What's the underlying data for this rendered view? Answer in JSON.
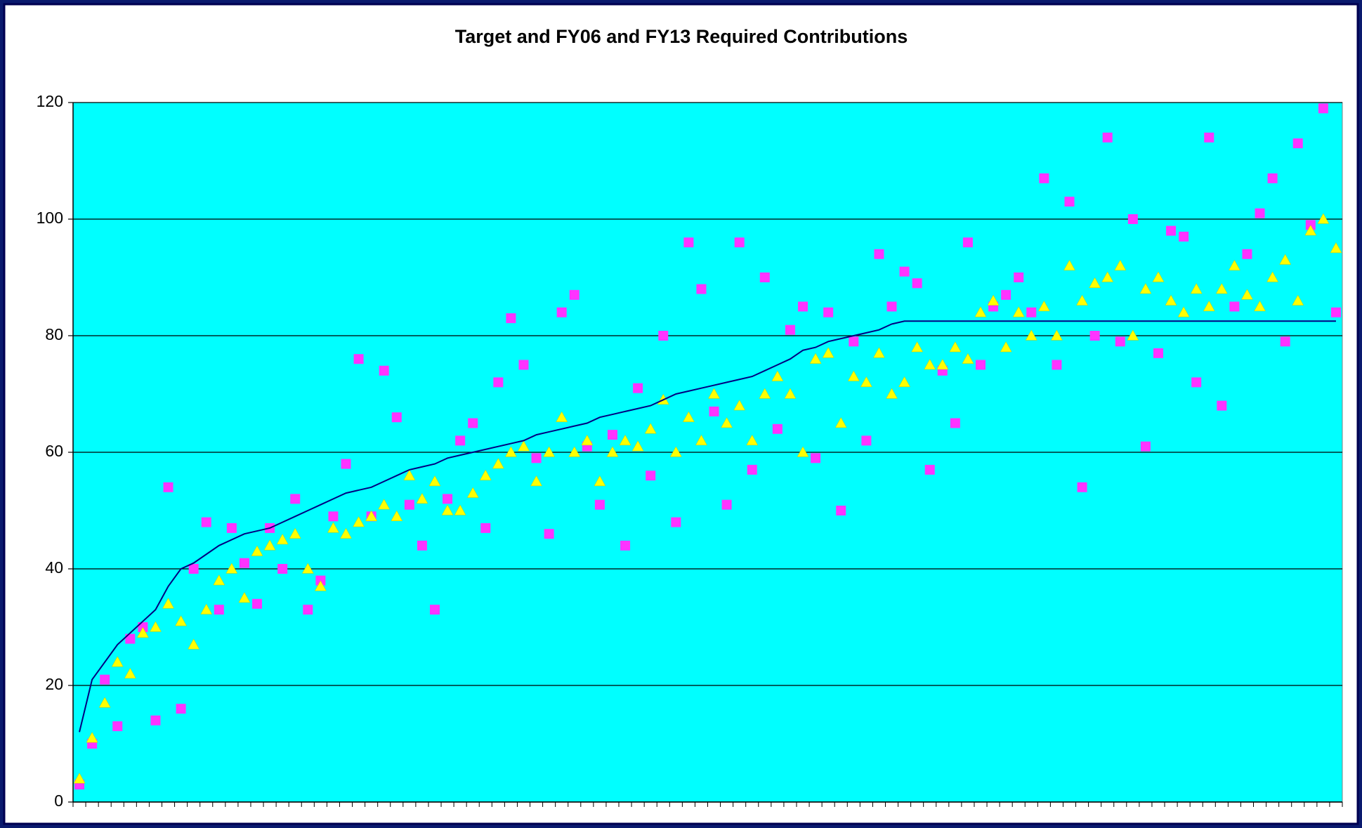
{
  "chart_data": {
    "type": "scatter",
    "title": "Target and FY06 and FY13 Required Contributions",
    "categories": [
      null,
      null,
      null,
      null,
      null,
      null,
      null,
      null,
      null,
      null,
      null,
      null,
      null,
      null,
      null,
      null,
      null,
      null,
      null,
      null,
      null,
      null,
      null,
      null,
      null,
      null,
      null,
      null,
      null,
      null,
      null,
      null,
      null,
      null,
      null,
      null,
      null,
      null,
      null,
      null,
      null,
      null,
      null,
      null,
      null,
      null,
      null,
      null,
      null,
      null,
      null,
      null,
      null,
      null,
      null,
      null,
      null,
      null,
      null,
      null,
      null,
      null,
      null,
      null,
      null,
      null,
      null,
      null,
      null,
      null,
      null,
      null,
      null,
      null,
      null,
      null,
      null,
      null,
      null,
      null,
      null,
      null,
      null,
      null,
      null,
      null,
      null,
      null,
      null,
      null,
      null,
      null,
      null,
      null,
      null,
      null,
      null,
      null,
      null,
      null
    ],
    "series": [
      {
        "color": "#000080",
        "marker": "line",
        "values": [
          12,
          21,
          24,
          27,
          29,
          31,
          33,
          37,
          40,
          41,
          42.5,
          44,
          45,
          46,
          46.5,
          47,
          48,
          49,
          50,
          51,
          52,
          53,
          53.5,
          54,
          55,
          56,
          57,
          57.5,
          58,
          59,
          59.5,
          60,
          60.5,
          61,
          61.5,
          62,
          63,
          63.5,
          64,
          64.5,
          65,
          66,
          66.5,
          67,
          67.5,
          68,
          69,
          70,
          70.5,
          71,
          71.5,
          72,
          72.5,
          73,
          74,
          75,
          76,
          77.5,
          78,
          79,
          79.5,
          80,
          80.5,
          81,
          82,
          82.5,
          82.5,
          82.5,
          82.5,
          82.5,
          82.5,
          82.5,
          82.5,
          82.5,
          82.5,
          82.5,
          82.5,
          82.5,
          82.5,
          82.5,
          82.5,
          82.5,
          82.5,
          82.5,
          82.5,
          82.5,
          82.5,
          82.5,
          82.5,
          82.5,
          82.5,
          82.5,
          82.5,
          82.5,
          82.5,
          82.5,
          82.5,
          82.5,
          82.5,
          82.5
        ]
      },
      {
        "color": "#ff33ff",
        "marker": "square",
        "values": [
          3,
          10,
          21,
          13,
          28,
          30,
          14,
          54,
          16,
          40,
          48,
          33,
          47,
          41,
          34,
          47,
          40,
          52,
          33,
          38,
          49,
          58,
          76,
          49,
          74,
          66,
          51,
          44,
          33,
          52,
          62,
          65,
          47,
          72,
          83,
          75,
          59,
          46,
          84,
          87,
          61,
          51,
          63,
          44,
          71,
          56,
          80,
          48,
          96,
          88,
          67,
          51,
          96,
          57,
          90,
          64,
          81,
          85,
          59,
          84,
          50,
          79,
          62,
          94,
          85,
          91,
          89,
          57,
          74,
          65,
          96,
          75,
          85,
          87,
          90,
          84,
          107,
          75,
          103,
          54,
          80,
          114,
          79,
          100,
          61,
          77,
          98,
          97,
          72,
          114,
          68,
          85,
          94,
          101,
          107,
          79,
          113,
          99,
          119,
          84
        ]
      },
      {
        "color": "#ffff00",
        "marker": "triangle",
        "values": [
          4,
          11,
          17,
          24,
          22,
          29,
          30,
          34,
          31,
          27,
          33,
          38,
          40,
          35,
          43,
          44,
          45,
          46,
          40,
          37,
          47,
          46,
          48,
          49,
          51,
          49,
          56,
          52,
          55,
          50,
          50,
          53,
          56,
          58,
          60,
          61,
          55,
          60,
          66,
          60,
          62,
          55,
          60,
          62,
          61,
          64,
          69,
          60,
          66,
          62,
          70,
          65,
          68,
          62,
          70,
          73,
          70,
          60,
          76,
          77,
          65,
          73,
          72,
          77,
          70,
          72,
          78,
          75,
          75,
          78,
          76,
          84,
          86,
          78,
          84,
          80,
          85,
          80,
          92,
          86,
          89,
          90,
          92,
          80,
          88,
          90,
          86,
          84,
          88,
          85,
          88,
          92,
          87,
          85,
          90,
          93,
          86,
          98,
          100,
          95
        ]
      }
    ],
    "ylim": [
      0,
      120
    ],
    "yticks": [
      0,
      20,
      40,
      60,
      80,
      100,
      120
    ],
    "grid": true,
    "plot_background": "#00ffff"
  }
}
